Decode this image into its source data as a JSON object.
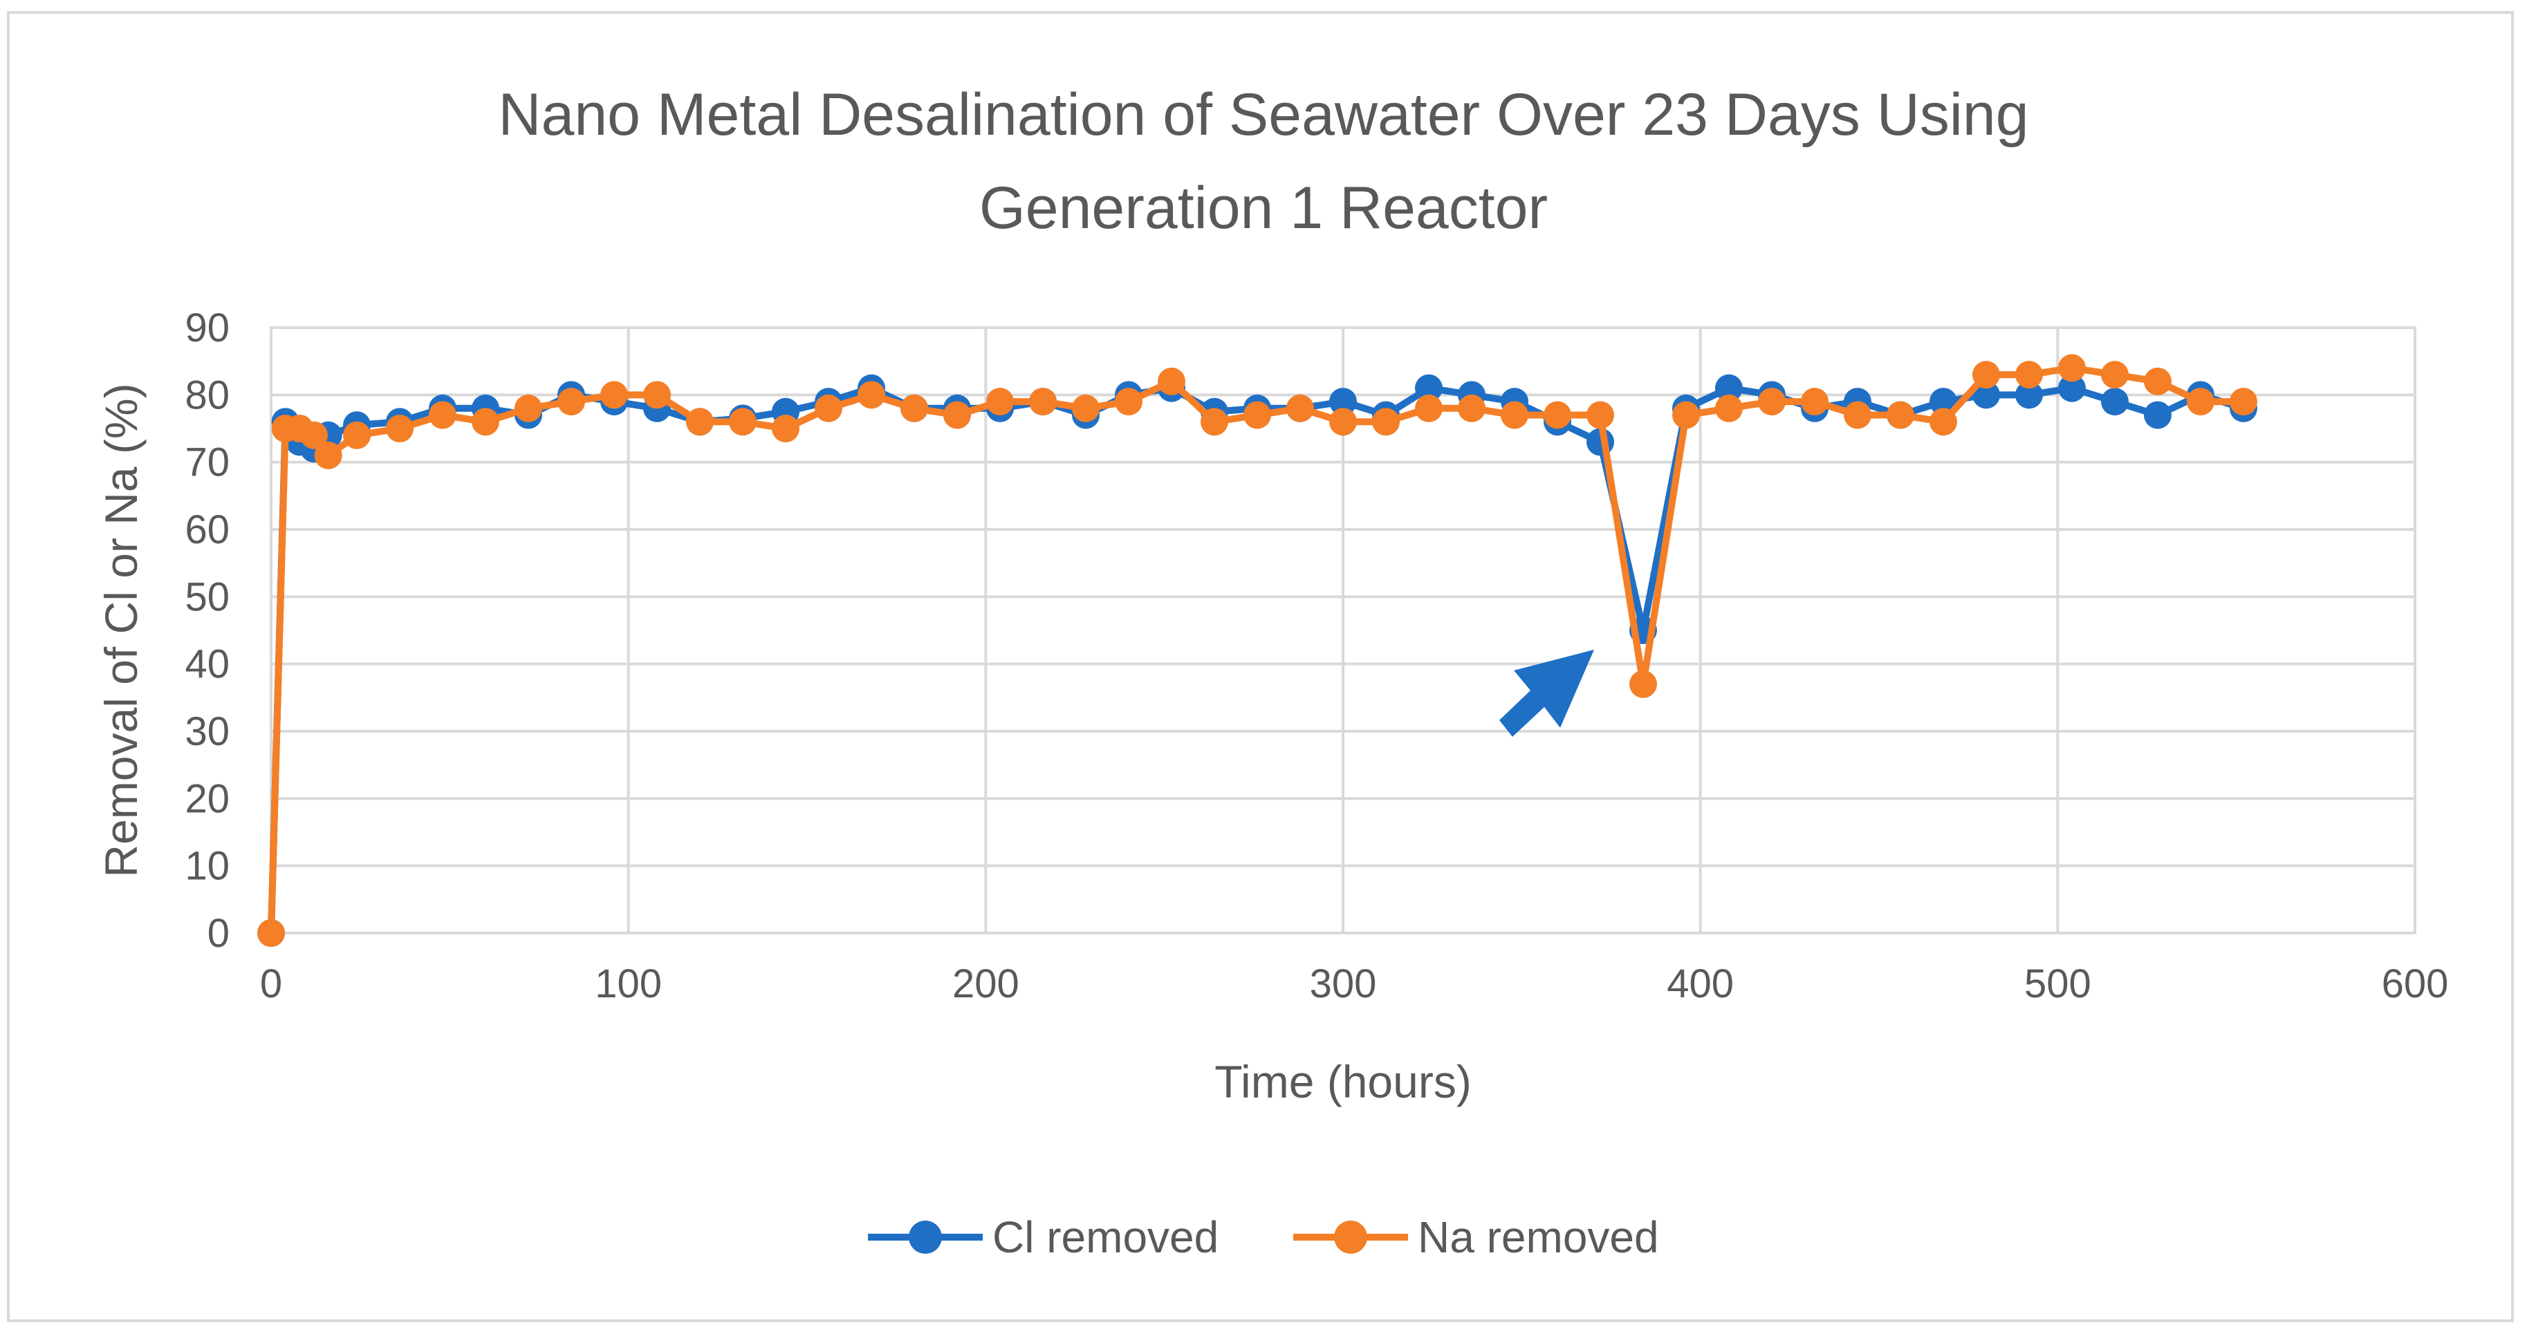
{
  "chart_data": {
    "type": "line",
    "title_lines": [
      "Nano Metal Desalination of Seawater Over 23 Days Using",
      "Generation 1 Reactor"
    ],
    "xlabel": "Time (hours)",
    "ylabel": "Removal of Cl or Na (%)",
    "xlim": [
      0,
      600
    ],
    "ylim": [
      0,
      90
    ],
    "x_ticks": [
      0,
      100,
      200,
      300,
      400,
      500,
      600
    ],
    "y_ticks": [
      0,
      10,
      20,
      30,
      40,
      50,
      60,
      70,
      80,
      90
    ],
    "grid": true,
    "legend_position": "bottom",
    "annotation": "arrow pointing to dip at ~384 hours",
    "series": [
      {
        "name": "Cl removed",
        "color": "#1f6fc5",
        "x": [
          0,
          4,
          8,
          12,
          16,
          24,
          36,
          48,
          60,
          72,
          84,
          96,
          108,
          120,
          132,
          144,
          156,
          168,
          180,
          192,
          204,
          216,
          228,
          240,
          252,
          264,
          276,
          288,
          300,
          312,
          324,
          336,
          348,
          360,
          372,
          384,
          396,
          408,
          420,
          432,
          444,
          456,
          468,
          480,
          492,
          504,
          516,
          528,
          540,
          552
        ],
        "y": [
          0,
          76,
          73,
          72,
          74,
          75.5,
          76,
          78,
          78,
          77,
          80,
          79,
          78,
          76,
          76.5,
          77.5,
          79,
          81,
          78,
          78,
          78,
          79,
          77,
          80,
          81,
          77.5,
          78,
          78,
          79,
          77,
          81,
          80,
          79,
          76,
          73,
          45,
          78,
          81,
          80,
          78,
          79,
          77,
          79,
          80,
          80,
          81,
          79,
          77,
          80,
          78
        ]
      },
      {
        "name": "Na removed",
        "color": "#f47f27",
        "x": [
          0,
          4,
          8,
          12,
          16,
          24,
          36,
          48,
          60,
          72,
          84,
          96,
          108,
          120,
          132,
          144,
          156,
          168,
          180,
          192,
          204,
          216,
          228,
          240,
          252,
          264,
          276,
          288,
          300,
          312,
          324,
          336,
          348,
          360,
          372,
          384,
          396,
          408,
          420,
          432,
          444,
          456,
          468,
          480,
          492,
          504,
          516,
          528,
          540,
          552
        ],
        "y": [
          0,
          75,
          75,
          74,
          71,
          74,
          75,
          77,
          76,
          78,
          79,
          80,
          80,
          76,
          76,
          75,
          78,
          80,
          78,
          77,
          79,
          79,
          78,
          79,
          82,
          76,
          77,
          78,
          76,
          76,
          78,
          78,
          77,
          77,
          77,
          37,
          77,
          78,
          79,
          79,
          77,
          77,
          76,
          83,
          83,
          84,
          83,
          82,
          79,
          79
        ]
      }
    ]
  }
}
